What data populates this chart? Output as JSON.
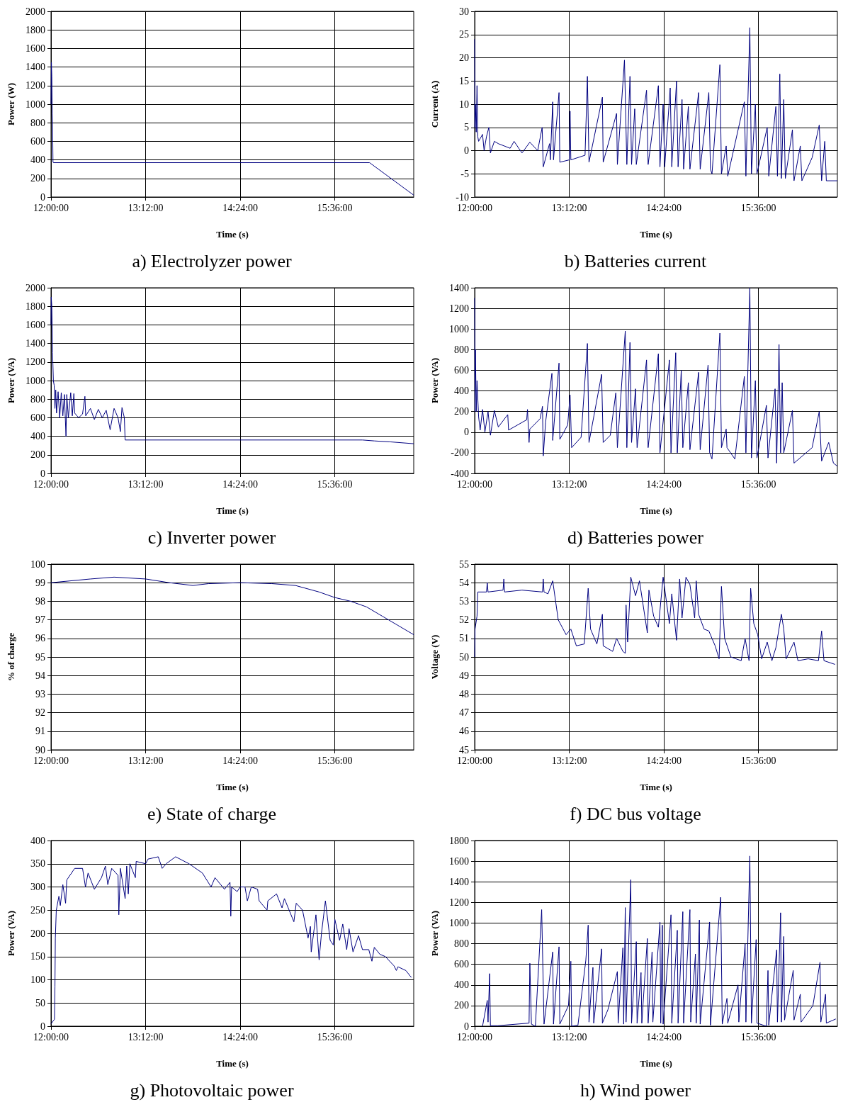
{
  "chart_data": [
    {
      "type": "line",
      "title": "a) Electrolyzer power",
      "xlabel": "Time (s)",
      "ylabel": "Power (W)",
      "color": "#000080",
      "grid": true,
      "xlim": [
        12,
        16.6
      ],
      "xticks": [
        {
          "value": 12,
          "label": "12:00:00"
        },
        {
          "value": 13.2,
          "label": "13:12:00"
        },
        {
          "value": 14.4,
          "label": "14:24:00"
        },
        {
          "value": 15.6,
          "label": "15:36:00"
        }
      ],
      "ylim": [
        0,
        2000
      ],
      "yticks": [
        0,
        200,
        400,
        600,
        800,
        1000,
        1200,
        1400,
        1600,
        1800,
        2000
      ],
      "x": [
        12,
        12.005,
        12.01,
        12.015,
        12.02,
        12.025,
        12.03,
        16.04,
        16.6
      ],
      "values": [
        1000,
        1450,
        1300,
        900,
        800,
        380,
        370,
        370,
        20
      ]
    },
    {
      "type": "line",
      "title": "b) Batteries current",
      "xlabel": "Time (s)",
      "ylabel": "Current (A)",
      "color": "#000080",
      "grid": true,
      "xlim": [
        12,
        16.6
      ],
      "xticks": [
        {
          "value": 12,
          "label": "12:00:00"
        },
        {
          "value": 13.2,
          "label": "13:12:00"
        },
        {
          "value": 14.4,
          "label": "14:24:00"
        },
        {
          "value": 15.6,
          "label": "15:36:00"
        }
      ],
      "ylim": [
        -10,
        30
      ],
      "yticks": [
        -10,
        -5,
        0,
        5,
        10,
        15,
        20,
        25,
        30
      ],
      "x": [
        12,
        12.003,
        12.01,
        12.02,
        12.03,
        12.04,
        12.05,
        12.1,
        12.12,
        12.15,
        12.18,
        12.2,
        12.25,
        12.3,
        12.45,
        12.5,
        12.6,
        12.7,
        12.8,
        12.856,
        12.87,
        12.95,
        12.96,
        12.99,
        13,
        13.07,
        13.08,
        13.2,
        13.21,
        13.22,
        13.4,
        13.43,
        13.45,
        13.62,
        13.63,
        13.8,
        13.81,
        13.9,
        13.93,
        13.97,
        13.99,
        14.03,
        14.05,
        14.18,
        14.2,
        14.33,
        14.35,
        14.39,
        14.41,
        14.48,
        14.5,
        14.56,
        14.58,
        14.63,
        14.65,
        14.71,
        14.73,
        14.84,
        14.86,
        14.97,
        14.99,
        15.01,
        15.11,
        15.13,
        15.19,
        15.21,
        15.42,
        15.44,
        15.49,
        15.51,
        15.56,
        15.58,
        15.71,
        15.73,
        15.82,
        15.84,
        15.87,
        15.89,
        15.92,
        15.94,
        16.03,
        16.05,
        16.13,
        16.15,
        16.28,
        16.37,
        16.4,
        16.44,
        16.46,
        16.6
      ],
      "values": [
        24,
        5,
        10,
        4,
        14,
        3,
        2,
        3.5,
        0,
        3,
        5,
        -0.5,
        2,
        1.5,
        0.5,
        2,
        -0.5,
        1.8,
        0,
        5,
        -3.5,
        1.5,
        -2,
        10.5,
        -2,
        12.5,
        -2.5,
        -2,
        8.5,
        -2,
        -1,
        16,
        -2.5,
        11.5,
        -2.5,
        8,
        -3,
        19.5,
        -3,
        16,
        -3,
        9,
        -3,
        13,
        -3,
        14,
        -3.5,
        10,
        -3.5,
        13.5,
        -3.5,
        15,
        -3.5,
        11,
        -4,
        9.5,
        -4,
        12.5,
        -4,
        12.5,
        -4,
        -5,
        18.5,
        -5,
        1,
        -5.5,
        10.5,
        -5.5,
        26.5,
        -5,
        10,
        -5,
        5,
        -5.5,
        9.5,
        -5.5,
        16.5,
        -6,
        11,
        -6,
        4.5,
        -6.5,
        1,
        -6.5,
        -1.5,
        5.5,
        -6.5,
        2,
        -6.5,
        -6.5
      ]
    },
    {
      "type": "line",
      "title": "c) Inverter power",
      "xlabel": "Time (s)",
      "ylabel": "Power (VA)",
      "color": "#000080",
      "grid": true,
      "xlim": [
        12,
        16.6
      ],
      "xticks": [
        {
          "value": 12,
          "label": "12:00:00"
        },
        {
          "value": 13.2,
          "label": "13:12:00"
        },
        {
          "value": 14.4,
          "label": "14:24:00"
        },
        {
          "value": 15.6,
          "label": "15:36:00"
        }
      ],
      "ylim": [
        0,
        2000
      ],
      "yticks": [
        0,
        200,
        400,
        600,
        800,
        1000,
        1200,
        1400,
        1600,
        1800,
        2000
      ],
      "x": [
        12,
        12.003,
        12.01,
        12.02,
        12.03,
        12.04,
        12.05,
        12.06,
        12.07,
        12.09,
        12.11,
        12.13,
        12.15,
        12.17,
        12.19,
        12.2,
        12.22,
        12.25,
        12.27,
        12.29,
        12.3,
        12.35,
        12.4,
        12.43,
        12.44,
        12.5,
        12.55,
        12.6,
        12.65,
        12.7,
        12.75,
        12.8,
        12.85,
        12.88,
        12.9,
        12.93,
        12.94,
        15.95,
        16.1,
        16.3,
        16.6
      ],
      "values": [
        1600,
        1900,
        1800,
        1300,
        1000,
        950,
        700,
        900,
        650,
        880,
        600,
        870,
        620,
        850,
        400,
        850,
        600,
        870,
        620,
        860,
        650,
        600,
        640,
        830,
        620,
        700,
        580,
        690,
        600,
        680,
        470,
        700,
        600,
        450,
        710,
        600,
        360,
        360,
        350,
        340,
        320
      ]
    },
    {
      "type": "line",
      "title": "d) Batteries power",
      "xlabel": "Time (s)",
      "ylabel": "Power (VA)",
      "color": "#000080",
      "grid": true,
      "xlim": [
        12,
        16.6
      ],
      "xticks": [
        {
          "value": 12,
          "label": "12:00:00"
        },
        {
          "value": 13.2,
          "label": "13:12:00"
        },
        {
          "value": 14.4,
          "label": "14:24:00"
        },
        {
          "value": 15.6,
          "label": "15:36:00"
        }
      ],
      "ylim": [
        -400,
        1400
      ],
      "yticks": [
        -400,
        -200,
        0,
        200,
        400,
        600,
        800,
        1000,
        1200,
        1400
      ],
      "x": [
        12,
        12.005,
        12.01,
        12.02,
        12.03,
        12.05,
        12.07,
        12.1,
        12.13,
        12.17,
        12.2,
        12.25,
        12.3,
        12.42,
        12.43,
        12.66,
        12.67,
        12.69,
        12.7,
        12.83,
        12.86,
        12.87,
        12.9,
        12.98,
        12.99,
        13.07,
        13.08,
        13.18,
        13.21,
        13.23,
        13.35,
        13.43,
        13.45,
        13.61,
        13.63,
        13.72,
        13.79,
        13.81,
        13.91,
        13.93,
        13.97,
        13.99,
        14.04,
        14.06,
        14.18,
        14.2,
        14.33,
        14.35,
        14.47,
        14.49,
        14.55,
        14.57,
        14.62,
        14.64,
        14.71,
        14.73,
        14.84,
        14.86,
        14.96,
        14.98,
        15.01,
        15.11,
        15.13,
        15.19,
        15.2,
        15.3,
        15.42,
        15.44,
        15.49,
        15.51,
        15.56,
        15.58,
        15.7,
        15.72,
        15.81,
        15.83,
        15.86,
        15.88,
        15.9,
        15.92,
        16.03,
        16.05,
        16.28,
        16.37,
        16.4,
        16.49,
        16.55,
        16.6
      ],
      "values": [
        1300,
        200,
        800,
        200,
        500,
        150,
        20,
        220,
        0,
        200,
        -30,
        210,
        50,
        170,
        20,
        120,
        220,
        -100,
        30,
        130,
        250,
        -230,
        100,
        570,
        -80,
        670,
        -70,
        70,
        360,
        -150,
        -50,
        860,
        -100,
        560,
        -100,
        -30,
        380,
        -150,
        980,
        -150,
        870,
        -100,
        420,
        -150,
        700,
        -150,
        760,
        -200,
        700,
        -200,
        770,
        -200,
        600,
        -150,
        480,
        -170,
        580,
        -170,
        650,
        -200,
        -260,
        960,
        -150,
        30,
        -150,
        -260,
        540,
        -200,
        1400,
        -250,
        500,
        -250,
        260,
        -250,
        420,
        -300,
        850,
        -200,
        480,
        -200,
        210,
        -300,
        -150,
        200,
        -280,
        -100,
        -300,
        -330
      ]
    },
    {
      "type": "line",
      "title": "e) State of charge",
      "xlabel": "Time (s)",
      "ylabel": "% of charge",
      "color": "#000080",
      "grid": true,
      "xlim": [
        12,
        16.6
      ],
      "xticks": [
        {
          "value": 12,
          "label": "12:00:00"
        },
        {
          "value": 13.2,
          "label": "13:12:00"
        },
        {
          "value": 14.4,
          "label": "14:24:00"
        },
        {
          "value": 15.6,
          "label": "15:36:00"
        }
      ],
      "ylim": [
        90,
        100
      ],
      "yticks": [
        90,
        91,
        92,
        93,
        94,
        95,
        96,
        97,
        98,
        99,
        100
      ],
      "x": [
        12,
        12.5,
        12.8,
        13.2,
        13.5,
        13.8,
        14,
        14.4,
        14.8,
        15.1,
        15.4,
        15.6,
        15.8,
        16,
        16.2,
        16.4,
        16.6
      ],
      "values": [
        99,
        99.2,
        99.3,
        99.2,
        99,
        98.85,
        98.95,
        99,
        98.95,
        98.85,
        98.5,
        98.2,
        98,
        97.7,
        97.2,
        96.7,
        96.2
      ]
    },
    {
      "type": "line",
      "title": "f) DC bus voltage",
      "xlabel": "Time (s)",
      "ylabel": "Voltage (V)",
      "color": "#000080",
      "grid": true,
      "xlim": [
        12,
        16.6
      ],
      "xticks": [
        {
          "value": 12,
          "label": "12:00:00"
        },
        {
          "value": 13.2,
          "label": "13:12:00"
        },
        {
          "value": 14.4,
          "label": "14:24:00"
        },
        {
          "value": 15.6,
          "label": "15:36:00"
        }
      ],
      "ylim": [
        45,
        55
      ],
      "yticks": [
        45,
        46,
        47,
        48,
        49,
        50,
        51,
        52,
        53,
        54,
        55
      ],
      "x": [
        12,
        12.005,
        12.03,
        12.04,
        12.15,
        12.16,
        12.17,
        12.36,
        12.37,
        12.38,
        12.6,
        12.86,
        12.87,
        12.88,
        12.93,
        12.99,
        13.06,
        13.16,
        13.22,
        13.29,
        13.39,
        13.44,
        13.47,
        13.55,
        13.62,
        13.63,
        13.75,
        13.8,
        13.88,
        13.91,
        13.92,
        13.94,
        13.98,
        14.04,
        14.09,
        14.19,
        14.21,
        14.27,
        14.33,
        14.39,
        14.47,
        14.5,
        14.56,
        14.6,
        14.63,
        14.68,
        14.73,
        14.79,
        14.81,
        14.84,
        14.91,
        14.97,
        15.05,
        15.1,
        15.13,
        15.17,
        15.25,
        15.38,
        15.43,
        15.48,
        15.5,
        15.54,
        15.59,
        15.64,
        15.71,
        15.77,
        15.82,
        15.89,
        15.92,
        15.95,
        16.05,
        16.1,
        16.23,
        16.36,
        16.4,
        16.43,
        16.57
      ],
      "values": [
        50,
        51.5,
        52.2,
        53.5,
        53.5,
        54,
        53.5,
        53.6,
        54.2,
        53.5,
        53.6,
        53.5,
        54.2,
        53.5,
        53.4,
        54.1,
        52,
        51.2,
        51.5,
        50.6,
        50.7,
        53.7,
        51.5,
        50.7,
        52.3,
        50.6,
        50.3,
        51,
        50.3,
        50.2,
        52.8,
        50.8,
        54.3,
        53.3,
        54.1,
        51.3,
        53.6,
        52.2,
        51.6,
        54.3,
        51.8,
        53.4,
        50.9,
        54.2,
        52.1,
        54.3,
        53.9,
        52.1,
        54.1,
        52.3,
        51.5,
        51.4,
        50.6,
        49.9,
        53.8,
        51,
        50,
        49.8,
        51,
        49.8,
        53.7,
        51.8,
        51.2,
        49.9,
        50.8,
        49.8,
        50.5,
        52.3,
        51.5,
        49.9,
        50.8,
        49.8,
        49.9,
        49.8,
        51.4,
        49.8,
        49.6
      ]
    },
    {
      "type": "line",
      "title": "g) Photovoltaic power",
      "xlabel": "Time (s)",
      "ylabel": "Power (VA)",
      "color": "#000080",
      "grid": true,
      "xlim": [
        12,
        16.6
      ],
      "xticks": [
        {
          "value": 12,
          "label": "12:00:00"
        },
        {
          "value": 13.2,
          "label": "13:12:00"
        },
        {
          "value": 14.4,
          "label": "14:24:00"
        },
        {
          "value": 15.6,
          "label": "15:36:00"
        }
      ],
      "ylim": [
        0,
        400
      ],
      "yticks": [
        0,
        50,
        100,
        150,
        200,
        250,
        300,
        350,
        400
      ],
      "x": [
        12,
        12.044,
        12.05,
        12.055,
        12.067,
        12.1,
        12.118,
        12.15,
        12.185,
        12.2,
        12.3,
        12.4,
        12.437,
        12.47,
        12.55,
        12.64,
        12.69,
        12.72,
        12.77,
        12.85,
        12.86,
        12.88,
        12.94,
        12.96,
        12.98,
        13,
        13.07,
        13.08,
        13.2,
        13.23,
        13.36,
        13.41,
        13.46,
        13.58,
        13.75,
        13.92,
        14.03,
        14.08,
        14.2,
        14.27,
        14.28,
        14.29,
        14.36,
        14.4,
        14.46,
        14.49,
        14.54,
        14.62,
        14.64,
        14.74,
        14.75,
        14.86,
        14.93,
        14.96,
        15.08,
        15.11,
        15.19,
        15.26,
        15.29,
        15.3,
        15.36,
        15.4,
        15.43,
        15.48,
        15.54,
        15.58,
        15.6,
        15.66,
        15.7,
        15.75,
        15.78,
        15.83,
        15.9,
        15.95,
        16.03,
        16.07,
        16.1,
        16.17,
        16.24,
        16.35,
        16.38,
        16.4,
        16.5,
        16.57
      ],
      "values": [
        5,
        15,
        85,
        190,
        250,
        280,
        260,
        305,
        265,
        315,
        340,
        340,
        300,
        330,
        295,
        320,
        345,
        305,
        340,
        325,
        240,
        340,
        275,
        345,
        285,
        350,
        320,
        355,
        350,
        360,
        365,
        340,
        350,
        365,
        350,
        330,
        300,
        320,
        295,
        310,
        237,
        300,
        290,
        300,
        300,
        270,
        300,
        295,
        270,
        250,
        270,
        285,
        255,
        275,
        225,
        265,
        250,
        190,
        215,
        160,
        240,
        143,
        200,
        270,
        185,
        175,
        230,
        185,
        220,
        165,
        210,
        160,
        195,
        165,
        165,
        140,
        170,
        155,
        150,
        130,
        120,
        128,
        120,
        105
      ]
    },
    {
      "type": "line",
      "title": "h) Wind power",
      "xlabel": "Time (s)",
      "ylabel": "Power (VA)",
      "color": "#000080",
      "grid": true,
      "xlim": [
        12,
        16.6
      ],
      "xticks": [
        {
          "value": 12,
          "label": "12:00:00"
        },
        {
          "value": 13.2,
          "label": "13:12:00"
        },
        {
          "value": 14.4,
          "label": "14:24:00"
        },
        {
          "value": 15.6,
          "label": "15:36:00"
        }
      ],
      "ylim": [
        0,
        1800
      ],
      "yticks": [
        0,
        200,
        400,
        600,
        800,
        1000,
        1200,
        1400,
        1600,
        1800
      ],
      "x": [
        12.1,
        12.16,
        12.17,
        12.19,
        12.2,
        12.29,
        12.69,
        12.7,
        12.72,
        12.77,
        12.85,
        12.88,
        12.99,
        13,
        13.07,
        13.08,
        13.19,
        13.22,
        13.23,
        13.31,
        13.41,
        13.44,
        13.45,
        13.5,
        13.51,
        13.61,
        13.62,
        13.69,
        13.81,
        13.82,
        13.88,
        13.89,
        13.91,
        13.92,
        13.98,
        13.99,
        14.05,
        14.06,
        14.11,
        14.12,
        14.19,
        14.2,
        14.25,
        14.26,
        14.35,
        14.36,
        14.38,
        14.39,
        14.49,
        14.5,
        14.57,
        14.58,
        14.64,
        14.65,
        14.73,
        14.74,
        14.8,
        14.81,
        14.85,
        14.86,
        14.98,
        14.99,
        15.12,
        15.14,
        15.2,
        15.21,
        15.34,
        15.35,
        15.43,
        15.44,
        15.49,
        15.51,
        15.57,
        15.58,
        15.7,
        15.72,
        15.73,
        15.83,
        15.84,
        15.88,
        15.89,
        15.92,
        15.93,
        16.04,
        16.05,
        16.13,
        16.14,
        16.29,
        16.38,
        16.39,
        16.45,
        16.46,
        16.58
      ],
      "values": [
        0,
        250,
        40,
        510,
        5,
        5,
        30,
        610,
        20,
        0,
        1130,
        20,
        720,
        20,
        770,
        20,
        200,
        630,
        0,
        10,
        640,
        980,
        40,
        570,
        30,
        750,
        30,
        160,
        530,
        30,
        760,
        20,
        1150,
        40,
        1420,
        30,
        820,
        30,
        520,
        30,
        850,
        30,
        720,
        40,
        1010,
        30,
        980,
        20,
        1080,
        30,
        930,
        30,
        1110,
        30,
        1130,
        40,
        700,
        30,
        1030,
        20,
        1010,
        10,
        1250,
        20,
        270,
        30,
        400,
        40,
        800,
        40,
        1650,
        30,
        840,
        30,
        0,
        540,
        10,
        740,
        40,
        1100,
        40,
        870,
        60,
        540,
        60,
        310,
        40,
        200,
        620,
        40,
        310,
        30,
        70
      ]
    }
  ]
}
